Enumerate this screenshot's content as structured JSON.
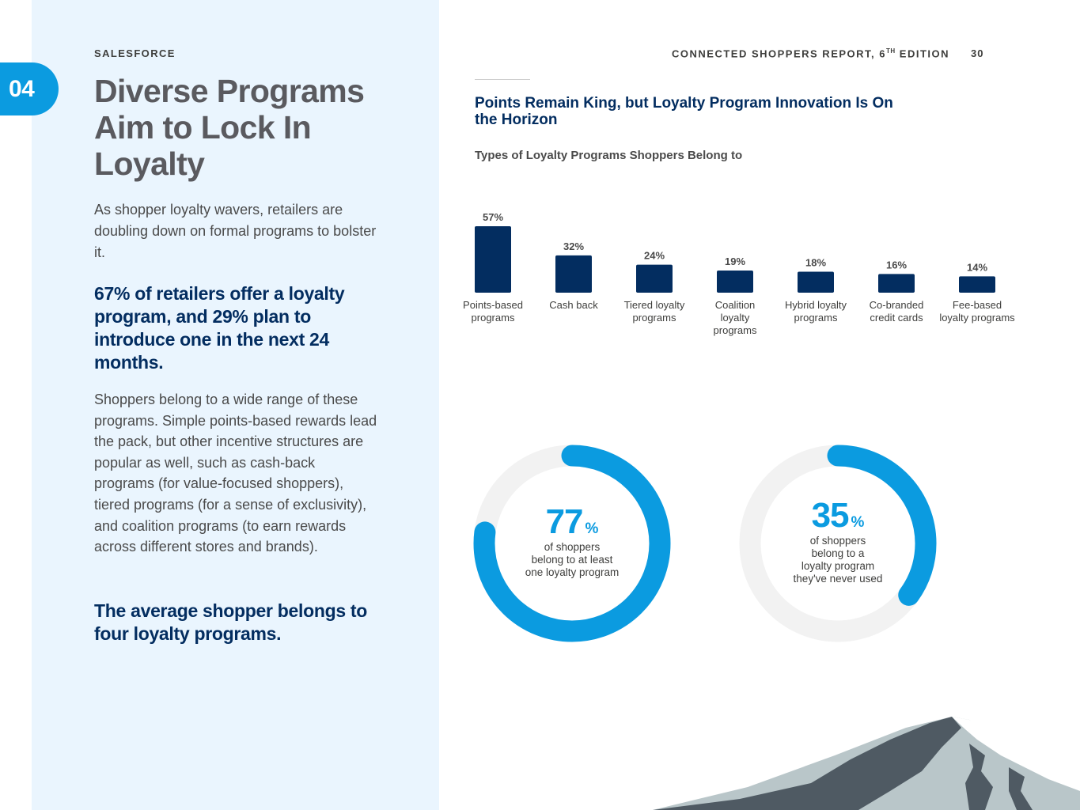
{
  "section": {
    "number": "04"
  },
  "brand": "SALESFORCE",
  "header": {
    "report_name": "CONNECTED SHOPPERS REPORT, 6",
    "edition_suffix": "TH",
    "edition_word": " EDITION",
    "page": "30"
  },
  "left": {
    "title": "Diverse Programs Aim to Lock In Loyalty",
    "intro": "As shopper loyalty wavers, retailers are doubling down on formal programs to bolster it.",
    "callout1": "67% of retailers offer a loyalty program, and 29% plan to introduce one in the next 24 months.",
    "body": "Shoppers belong to a wide range of these programs. Simple points-based rewards lead the pack, but other incentive structures are popular as well, such as cash-back programs (for value-focused shoppers), tiered programs (for a sense of exclusivity), and coalition programs (to earn rewards across different stores and brands).",
    "callout2": "The average shopper belongs to four loyalty programs."
  },
  "chart_data": [
    {
      "type": "bar",
      "title": "Points Remain King, but Loyalty Program Innovation Is On the Horizon",
      "subtitle": "Types of Loyalty Programs Shoppers Belong to",
      "categories": [
        [
          "Points-based",
          "programs"
        ],
        [
          "Cash back"
        ],
        [
          "Tiered loyalty",
          "programs"
        ],
        [
          "Coalition",
          "loyalty",
          "programs"
        ],
        [
          "Hybrid loyalty",
          "programs"
        ],
        [
          "Co-branded",
          "credit cards"
        ],
        [
          "Fee-based",
          "loyalty programs"
        ]
      ],
      "values": [
        57,
        32,
        24,
        19,
        18,
        16,
        14
      ],
      "value_labels": [
        "57%",
        "32%",
        "24%",
        "19%",
        "18%",
        "16%",
        "14%"
      ],
      "ylim": [
        0,
        57
      ],
      "grid": false,
      "color": "#032d60"
    },
    {
      "type": "pie",
      "variant": "donut",
      "value": 77,
      "value_text": "77",
      "unit": "%",
      "label": [
        "of shoppers",
        "belong to at least",
        "one loyalty program"
      ],
      "color": "#0b9be0",
      "track_color": "#f2f2f2"
    },
    {
      "type": "pie",
      "variant": "donut",
      "value": 35,
      "value_text": "35",
      "unit": "%",
      "label": [
        "of shoppers",
        "belong to a",
        "loyalty program",
        "they've never used"
      ],
      "color": "#0b9be0",
      "track_color": "#f2f2f2"
    }
  ],
  "colors": {
    "navy": "#032d60",
    "blue": "#0b9be0",
    "panel": "#eaf5fe",
    "mountain_dark": "#4f5a63",
    "mountain_light": "#b9c6c9"
  }
}
